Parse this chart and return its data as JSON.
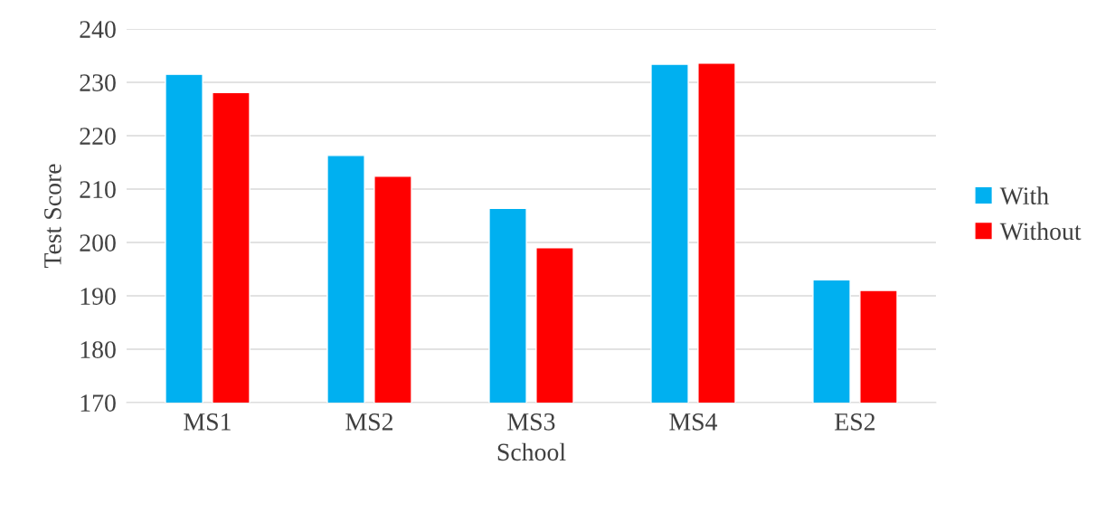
{
  "chart_data": {
    "type": "bar",
    "xlabel": "School",
    "ylabel": "Test Score",
    "categories": [
      "MS1",
      "MS2",
      "MS3",
      "MS4",
      "ES2"
    ],
    "series": [
      {
        "name": "With",
        "color": "#00b0f0",
        "values": [
          231.5,
          216.3,
          206.4,
          233.4,
          193.0
        ]
      },
      {
        "name": "Without",
        "color": "#ff0000",
        "values": [
          228.1,
          212.4,
          199.0,
          233.6,
          191.0
        ]
      }
    ],
    "ylim": [
      170,
      240
    ],
    "yticks": [
      170,
      180,
      190,
      200,
      210,
      220,
      230,
      240
    ],
    "grid": "y",
    "legend": "right"
  }
}
